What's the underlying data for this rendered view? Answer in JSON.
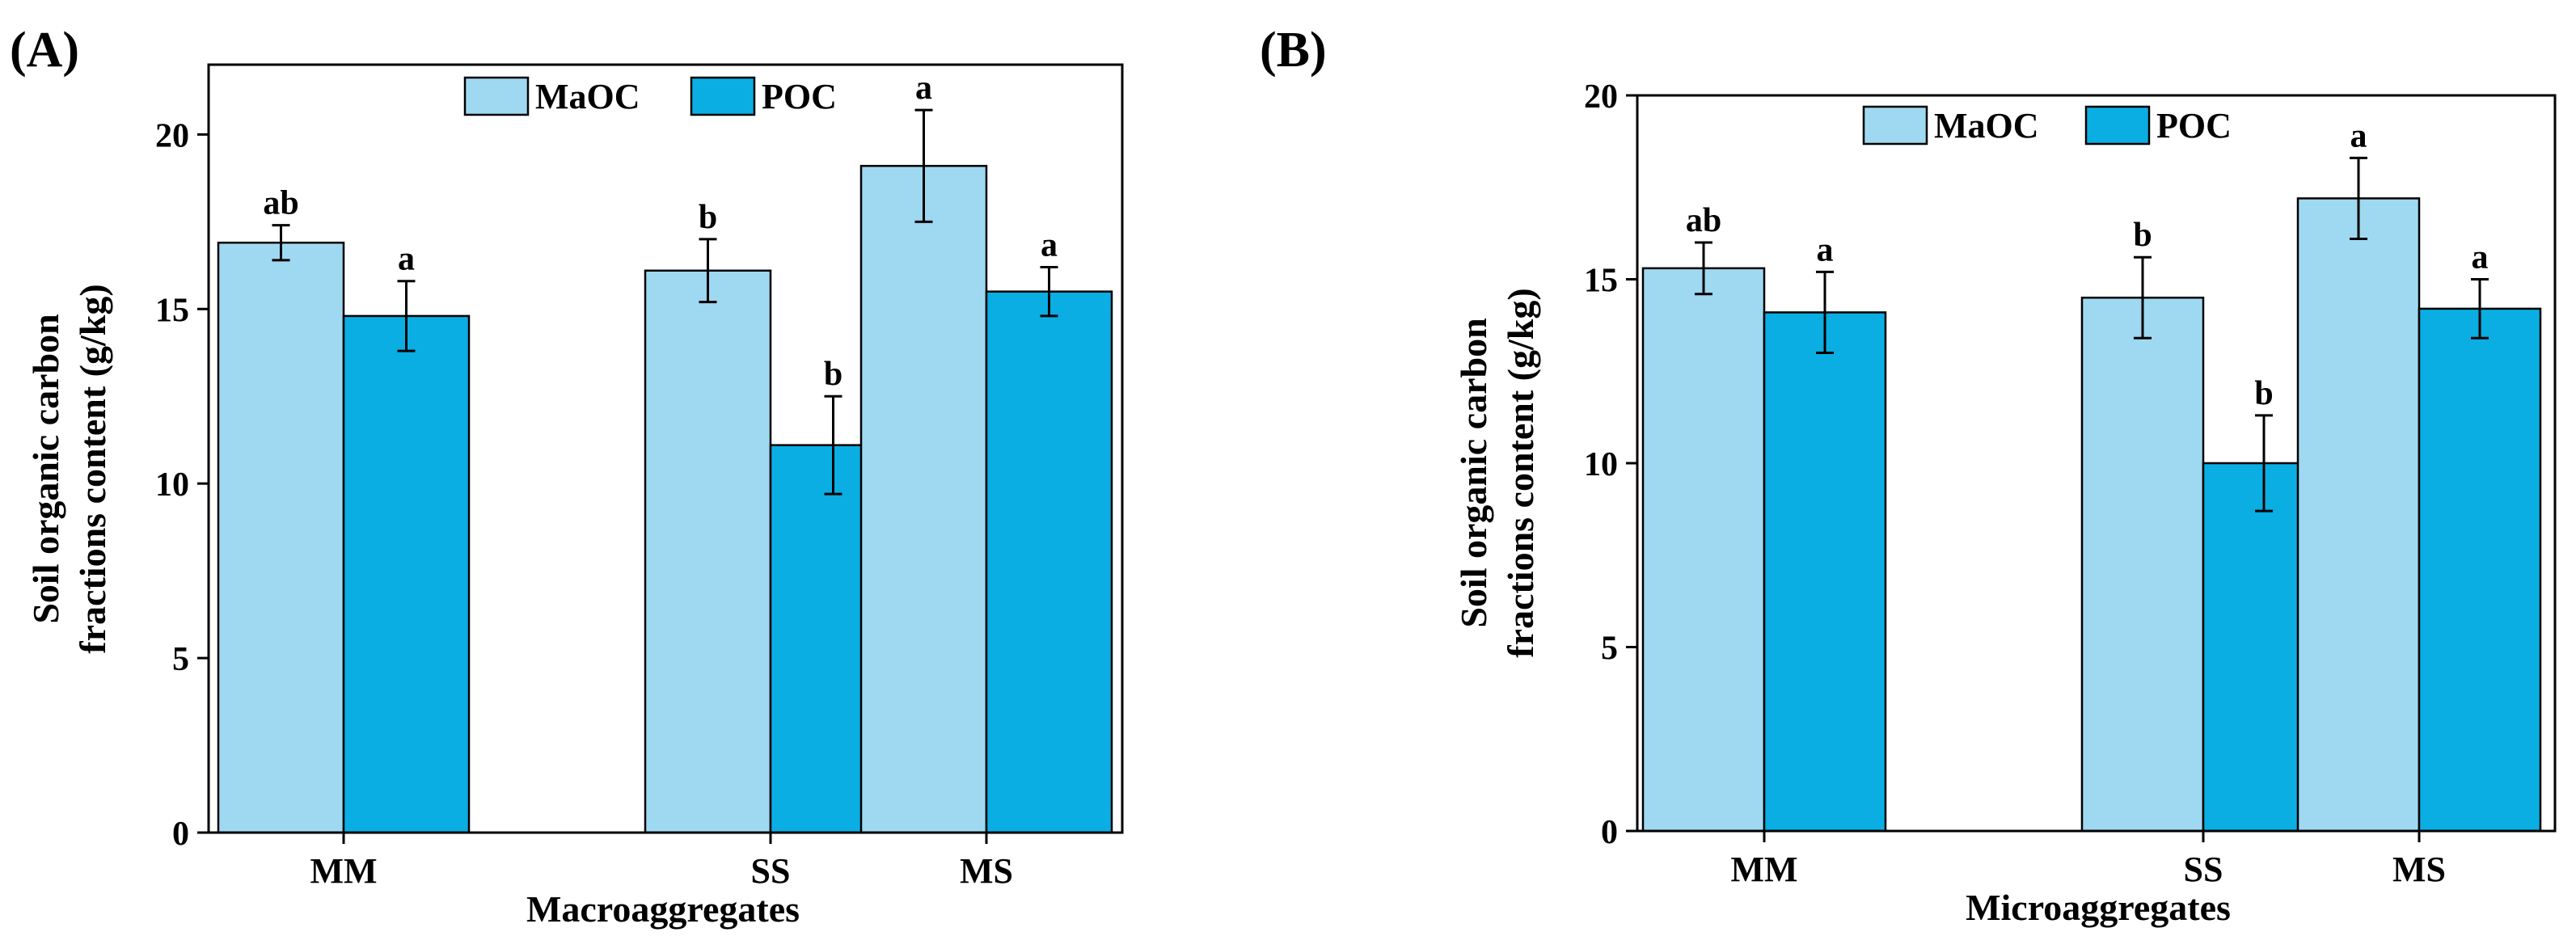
{
  "colors": {
    "maoc": "#9fd8f1",
    "poc": "#0aaee3",
    "axis": "#000000"
  },
  "chart_data": [
    {
      "type": "bar",
      "panel_label": "(A)",
      "categories": [
        "MM",
        "SS",
        "MS"
      ],
      "xlabel": "Macroaggregates",
      "ylabel": [
        "Soil organic carbon",
        "fractions content (g/kg)"
      ],
      "ylim": [
        0,
        22
      ],
      "yticks": [
        0,
        5,
        10,
        15,
        20
      ],
      "legend": [
        "MaOC",
        "POC"
      ],
      "legend_position": "top-center",
      "series": [
        {
          "name": "MaOC",
          "values": [
            16.9,
            16.1,
            19.1
          ],
          "errors": [
            0.5,
            0.9,
            1.6
          ],
          "letters": [
            "ab",
            "b",
            "a"
          ]
        },
        {
          "name": "POC",
          "values": [
            14.8,
            11.1,
            15.5
          ],
          "errors": [
            1.0,
            1.4,
            0.7
          ],
          "letters": [
            "a",
            "b",
            "a"
          ]
        }
      ]
    },
    {
      "type": "bar",
      "panel_label": "(B)",
      "categories": [
        "MM",
        "SS",
        "MS"
      ],
      "xlabel": "Microaggregates",
      "ylabel": [
        "Soil organic carbon",
        "fractions content (g/kg)"
      ],
      "ylim": [
        0,
        20
      ],
      "yticks": [
        0,
        5,
        10,
        15,
        20
      ],
      "legend": [
        "MaOC",
        "POC"
      ],
      "legend_position": "top-center",
      "series": [
        {
          "name": "MaOC",
          "values": [
            15.3,
            14.5,
            17.2
          ],
          "errors": [
            0.7,
            1.1,
            1.1
          ],
          "letters": [
            "ab",
            "b",
            "a"
          ]
        },
        {
          "name": "POC",
          "values": [
            14.1,
            10.0,
            14.2
          ],
          "errors": [
            1.1,
            1.3,
            0.8
          ],
          "letters": [
            "a",
            "b",
            "a"
          ]
        }
      ]
    }
  ]
}
